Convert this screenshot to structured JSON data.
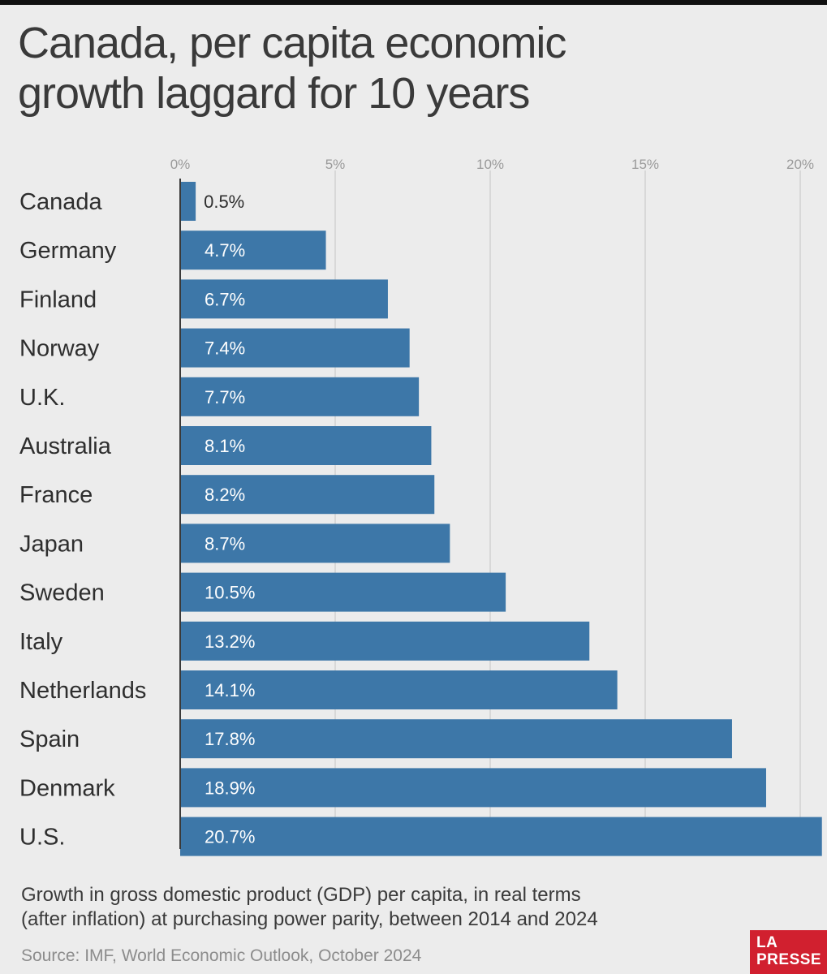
{
  "title_line1": "Canada, per capita economic",
  "title_line2": "growth laggard for 10 years",
  "caption_line1": "Growth in gross domestic product (GDP) per capita, in real terms",
  "caption_line2": "(after inflation) at purchasing power parity, between 2014 and 2024",
  "source": "Source: IMF, World Economic Outlook, October 2024",
  "logo": {
    "line1": "LA",
    "line2": "PRESSE",
    "color": "#d1202f"
  },
  "colors": {
    "bar": "#3d77a8",
    "background": "#ececec"
  },
  "chart_data": {
    "type": "bar",
    "orientation": "horizontal",
    "title": "Canada, per capita economic growth laggard for 10 years",
    "categories": [
      "Canada",
      "Germany",
      "Finland",
      "Norway",
      "U.K.",
      "Australia",
      "France",
      "Japan",
      "Sweden",
      "Italy",
      "Netherlands",
      "Spain",
      "Denmark",
      "U.S."
    ],
    "values": [
      0.5,
      4.7,
      6.7,
      7.4,
      7.7,
      8.1,
      8.2,
      8.7,
      10.5,
      13.2,
      14.1,
      17.8,
      18.9,
      20.7
    ],
    "value_labels": [
      "0.5%",
      "4.7%",
      "6.7%",
      "7.4%",
      "7.7%",
      "8.1%",
      "8.2%",
      "8.7%",
      "10.5%",
      "13.2%",
      "14.1%",
      "17.8%",
      "18.9%",
      "20.7%"
    ],
    "xticks": [
      0,
      5,
      10,
      15,
      20
    ],
    "xtick_labels": [
      "0%",
      "5%",
      "10%",
      "15%",
      "20%"
    ],
    "xlim": [
      0,
      20.7
    ],
    "grid": true,
    "axis_position": "top"
  }
}
